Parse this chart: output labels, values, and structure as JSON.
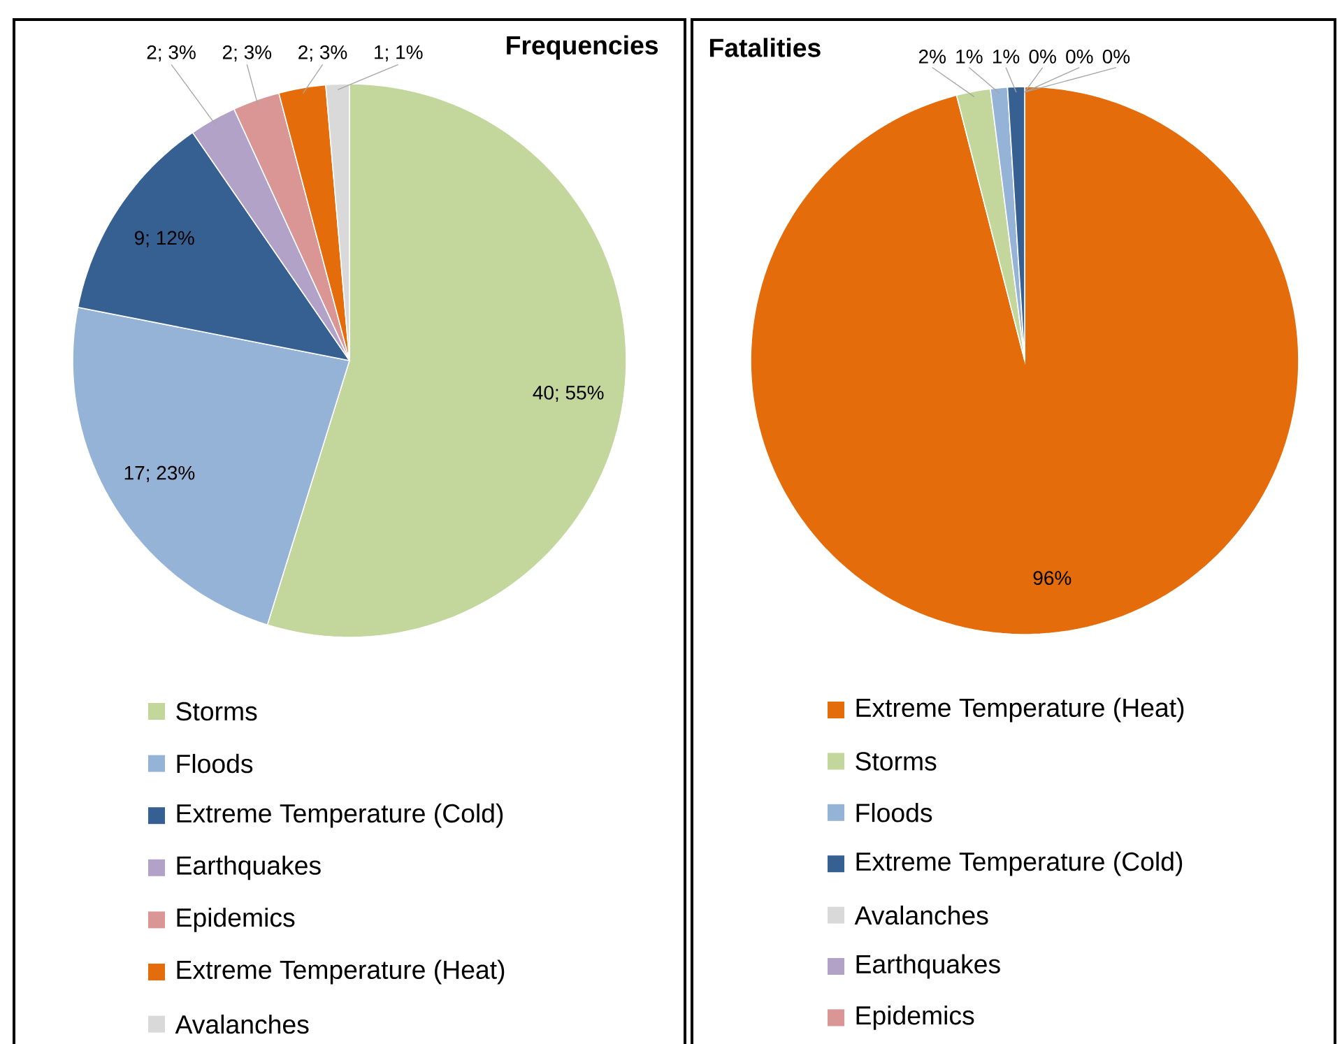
{
  "chart_data": [
    {
      "type": "pie",
      "title": "Frequencies",
      "legend": "bottom",
      "categories": [
        "Storms",
        "Floods",
        "Extreme Temperature (Cold)",
        "Earthquakes",
        "Epidemics",
        "Extreme Temperature (Heat)",
        "Avalanches"
      ],
      "values": [
        40,
        17,
        9,
        2,
        2,
        2,
        1
      ],
      "value_labels": [
        "40; 55%",
        "17; 23%",
        "9; 12%",
        "2; 3%",
        "2; 3%",
        "2; 3%",
        "1; 1%"
      ],
      "colors": [
        "#c3d69b",
        "#95b3d7",
        "#376092",
        "#b3a2c7",
        "#d99694",
        "#e46c0a",
        "#d9d9d9"
      ]
    },
    {
      "type": "pie",
      "title": "Fatalities",
      "legend": "bottom",
      "categories": [
        "Extreme Temperature (Heat)",
        "Storms",
        "Floods",
        "Extreme Temperature (Cold)",
        "Avalanches",
        "Earthquakes",
        "Epidemics"
      ],
      "values": [
        96,
        2,
        1,
        1,
        0,
        0,
        0
      ],
      "value_labels": [
        "96%",
        "2%",
        "1%",
        "1%",
        "0%",
        "0%",
        "0%"
      ],
      "colors": [
        "#e46c0a",
        "#c3d69b",
        "#95b3d7",
        "#376092",
        "#d9d9d9",
        "#b3a2c7",
        "#d99694"
      ]
    }
  ]
}
